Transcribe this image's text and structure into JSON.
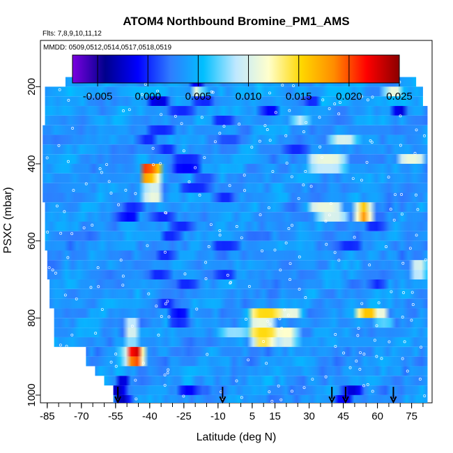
{
  "chart_data": {
    "type": "heatmap",
    "title": "ATOM4 Northbound Bromine_PM1_AMS",
    "flights_label": "Flts: 7,8,9,10,11,12",
    "dates_label": "MMDD: 0509,0512,0514,0517,0518,0519",
    "xlabel": "Latitude (deg N)",
    "ylabel": "PSXC (mbar)",
    "xlim": [
      -88,
      84
    ],
    "ylim": [
      1020,
      80
    ],
    "x_ticks": [
      -85,
      -70,
      -55,
      -40,
      -25,
      -10,
      5,
      15,
      30,
      45,
      60,
      75
    ],
    "y_ticks": [
      200,
      400,
      600,
      800,
      1000
    ],
    "colorbar": {
      "range": [
        -0.0075,
        0.025
      ],
      "ticks": [
        "-0.005",
        "0.000",
        "0.005",
        "0.010",
        "0.015",
        "0.020",
        "0.025"
      ],
      "tick_values": [
        -0.005,
        0.0,
        0.005,
        0.01,
        0.015,
        0.02,
        0.025
      ],
      "colors": [
        "#7a00e0",
        "#00008c",
        "#0000ff",
        "#2f7dff",
        "#00bfff",
        "#bfe8ff",
        "#ffffcc",
        "#ffd700",
        "#ff8c00",
        "#ff0000",
        "#8b0000"
      ]
    },
    "arrow_latitudes": [
      -54,
      -8,
      40,
      46,
      67
    ],
    "layers": [
      {
        "p_top": 175,
        "p_bot": 200,
        "lat_start": -77,
        "lat_end": 77,
        "base": 0.004,
        "features": [
          [
            -20,
            -18,
            -0.002
          ]
        ]
      },
      {
        "p_top": 200,
        "p_bot": 225,
        "lat_start": -86,
        "lat_end": 80,
        "base": 0.0042,
        "features": [
          [
            -20,
            -18,
            0.011
          ],
          [
            64,
            70,
            0.011
          ]
        ]
      },
      {
        "p_top": 225,
        "p_bot": 250,
        "lat_start": -86,
        "lat_end": 80,
        "base": 0.004,
        "features": [
          [
            -40,
            -32,
            -0.002
          ],
          [
            -20,
            -12,
            0.0
          ],
          [
            28,
            34,
            0.0
          ]
        ]
      },
      {
        "p_top": 250,
        "p_bot": 275,
        "lat_start": -86,
        "lat_end": 82,
        "base": 0.0038,
        "features": [
          [
            -30,
            -22,
            0.0
          ],
          [
            10,
            16,
            -0.001
          ],
          [
            68,
            72,
            -0.002
          ]
        ]
      },
      {
        "p_top": 275,
        "p_bot": 300,
        "lat_start": -86,
        "lat_end": 82,
        "base": 0.0036,
        "features": [
          [
            -12,
            -4,
            0.0
          ],
          [
            24,
            28,
            0.009
          ]
        ]
      },
      {
        "p_top": 300,
        "p_bot": 325,
        "lat_start": -87,
        "lat_end": 82,
        "base": 0.0035,
        "features": [
          [
            -40,
            -30,
            0.0
          ],
          [
            50,
            60,
            0.003
          ]
        ]
      },
      {
        "p_top": 325,
        "p_bot": 350,
        "lat_start": -87,
        "lat_end": 82,
        "base": 0.0036,
        "features": [
          [
            -44,
            -38,
            0.0
          ],
          [
            -10,
            0,
            0.001
          ],
          [
            40,
            50,
            0.01
          ]
        ]
      },
      {
        "p_top": 350,
        "p_bot": 375,
        "lat_start": -87,
        "lat_end": 82,
        "base": 0.0035,
        "features": [
          [
            -36,
            -30,
            0.0
          ],
          [
            20,
            28,
            0.0
          ]
        ]
      },
      {
        "p_top": 375,
        "p_bot": 400,
        "lat_start": -87,
        "lat_end": 82,
        "base": 0.0034,
        "features": [
          [
            -30,
            -18,
            0.0
          ],
          [
            30,
            46,
            0.011
          ],
          [
            70,
            80,
            0.011
          ]
        ]
      },
      {
        "p_top": 400,
        "p_bot": 425,
        "lat_start": -87,
        "lat_end": 82,
        "base": 0.0035,
        "features": [
          [
            -42,
            -38,
            0.022
          ],
          [
            -38,
            -35,
            0.016
          ],
          [
            -30,
            -18,
            -0.001
          ],
          [
            30,
            46,
            0.009
          ]
        ]
      },
      {
        "p_top": 425,
        "p_bot": 450,
        "lat_start": -87,
        "lat_end": 82,
        "base": 0.0036,
        "features": [
          [
            -42,
            -38,
            0.019
          ],
          [
            -38,
            -35,
            0.012
          ],
          [
            -20,
            -12,
            0.001
          ]
        ]
      },
      {
        "p_top": 450,
        "p_bot": 475,
        "lat_start": -87,
        "lat_end": 82,
        "base": 0.0034,
        "features": [
          [
            -42,
            -35,
            0.01
          ],
          [
            -26,
            -14,
            0.0
          ]
        ]
      },
      {
        "p_top": 475,
        "p_bot": 500,
        "lat_start": -87,
        "lat_end": 82,
        "base": 0.0035,
        "features": [
          [
            -42,
            -35,
            0.011
          ],
          [
            -10,
            -4,
            0.0
          ]
        ]
      },
      {
        "p_top": 500,
        "p_bot": 525,
        "lat_start": -86,
        "lat_end": 82,
        "base": 0.0034,
        "features": [
          [
            -50,
            -44,
            0.0
          ],
          [
            30,
            44,
            0.011
          ],
          [
            52,
            56,
            0.016
          ]
        ]
      },
      {
        "p_top": 525,
        "p_bot": 550,
        "lat_start": -86,
        "lat_end": 82,
        "base": 0.0033,
        "features": [
          [
            -52,
            -46,
            -0.001
          ],
          [
            -38,
            -30,
            0.0
          ],
          [
            34,
            46,
            0.01
          ],
          [
            52,
            56,
            0.018
          ]
        ]
      },
      {
        "p_top": 550,
        "p_bot": 575,
        "lat_start": -86,
        "lat_end": 82,
        "base": 0.0034,
        "features": [
          [
            -30,
            -22,
            0.0
          ],
          [
            56,
            62,
            0.0
          ]
        ]
      },
      {
        "p_top": 575,
        "p_bot": 600,
        "lat_start": -86,
        "lat_end": 82,
        "base": 0.0033,
        "features": [
          [
            -34,
            -28,
            0.0
          ]
        ]
      },
      {
        "p_top": 600,
        "p_bot": 625,
        "lat_start": -86,
        "lat_end": 82,
        "base": 0.0033,
        "features": [
          [
            -12,
            -2,
            0.0
          ],
          [
            44,
            52,
            0.0
          ]
        ]
      },
      {
        "p_top": 625,
        "p_bot": 650,
        "lat_start": -85,
        "lat_end": 82,
        "base": 0.0034,
        "features": [
          [
            -36,
            -30,
            0.0
          ]
        ]
      },
      {
        "p_top": 650,
        "p_bot": 675,
        "lat_start": -85,
        "lat_end": 82,
        "base": 0.0035,
        "features": [
          [
            76,
            81,
            0.01
          ]
        ]
      },
      {
        "p_top": 675,
        "p_bot": 700,
        "lat_start": -85,
        "lat_end": 82,
        "base": 0.0034,
        "features": [
          [
            -40,
            -32,
            0.0
          ],
          [
            -10,
            -4,
            0.0
          ],
          [
            76,
            81,
            0.009
          ]
        ]
      },
      {
        "p_top": 700,
        "p_bot": 725,
        "lat_start": -84,
        "lat_end": 82,
        "base": 0.0034,
        "features": [
          [
            -28,
            -20,
            0.0
          ],
          [
            58,
            62,
            0.0
          ]
        ]
      },
      {
        "p_top": 725,
        "p_bot": 750,
        "lat_start": -84,
        "lat_end": 82,
        "base": 0.0035,
        "features": []
      },
      {
        "p_top": 750,
        "p_bot": 775,
        "lat_start": -84,
        "lat_end": 82,
        "base": 0.0036,
        "features": [
          [
            -36,
            -30,
            0.0
          ]
        ]
      },
      {
        "p_top": 775,
        "p_bot": 800,
        "lat_start": -82,
        "lat_end": 82,
        "base": 0.0035,
        "features": [
          [
            -30,
            -24,
            -0.001
          ],
          [
            4,
            18,
            0.015
          ],
          [
            18,
            26,
            0.011
          ],
          [
            52,
            60,
            0.016
          ],
          [
            60,
            64,
            0.011
          ]
        ]
      },
      {
        "p_top": 800,
        "p_bot": 825,
        "lat_start": -82,
        "lat_end": 82,
        "base": 0.0034,
        "features": [
          [
            -50,
            -46,
            0.009
          ],
          [
            -30,
            -24,
            0.0
          ],
          [
            4,
            14,
            0.011
          ],
          [
            60,
            66,
            0.007
          ]
        ]
      },
      {
        "p_top": 825,
        "p_bot": 850,
        "lat_start": -82,
        "lat_end": 82,
        "base": 0.0036,
        "features": [
          [
            -50,
            -46,
            0.01
          ],
          [
            -8,
            2,
            0.008
          ],
          [
            4,
            16,
            0.015
          ],
          [
            16,
            24,
            0.012
          ]
        ]
      },
      {
        "p_top": 850,
        "p_bot": 875,
        "lat_start": -82,
        "lat_end": 82,
        "base": 0.0035,
        "features": [
          [
            -50,
            -46,
            0.008
          ],
          [
            6,
            14,
            0.014
          ],
          [
            16,
            24,
            0.01
          ]
        ]
      },
      {
        "p_top": 875,
        "p_bot": 900,
        "lat_start": -68,
        "lat_end": 82,
        "base": 0.0034,
        "features": [
          [
            -52,
            -48,
            0.01
          ],
          [
            -48,
            -44,
            0.023
          ]
        ]
      },
      {
        "p_top": 900,
        "p_bot": 925,
        "lat_start": -68,
        "lat_end": 82,
        "base": 0.0035,
        "features": [
          [
            -52,
            -48,
            0.009
          ],
          [
            -48,
            -44,
            0.02
          ]
        ]
      },
      {
        "p_top": 925,
        "p_bot": 950,
        "lat_start": -64,
        "lat_end": 82,
        "base": 0.0035,
        "features": []
      },
      {
        "p_top": 950,
        "p_bot": 975,
        "lat_start": -60,
        "lat_end": 82,
        "base": 0.0036,
        "features": [
          [
            -54,
            -50,
            -0.002
          ]
        ]
      },
      {
        "p_top": 975,
        "p_bot": 1000,
        "lat_start": -56,
        "lat_end": 82,
        "base": 0.0033,
        "features": [
          [
            -56,
            -52,
            -0.003
          ],
          [
            -26,
            -20,
            -0.001
          ],
          [
            46,
            52,
            -0.002
          ]
        ]
      },
      {
        "p_top": 1000,
        "p_bot": 1020,
        "lat_start": -56,
        "lat_end": 82,
        "base": 0.0033,
        "features": [
          [
            -54,
            -50,
            -0.003
          ],
          [
            42,
            48,
            -0.001
          ]
        ]
      }
    ],
    "grid": false,
    "legend": "colorbar-top"
  }
}
